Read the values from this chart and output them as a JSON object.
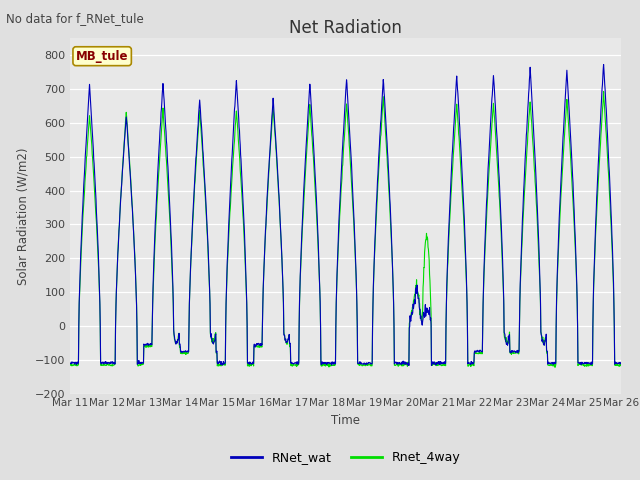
{
  "title": "Net Radiation",
  "ylabel": "Solar Radiation (W/m2)",
  "xlabel": "Time",
  "no_data_text": "No data for f_RNet_tule",
  "annotation_text": "MB_tule",
  "ylim": [
    -200,
    850
  ],
  "yticks": [
    -200,
    -100,
    0,
    100,
    200,
    300,
    400,
    500,
    600,
    700,
    800
  ],
  "xtick_labels": [
    "Mar 11",
    "Mar 12",
    "Mar 13",
    "Mar 14",
    "Mar 15",
    "Mar 16",
    "Mar 17",
    "Mar 18",
    "Mar 19",
    "Mar 20",
    "Mar 21",
    "Mar 22",
    "Mar 23",
    "Mar 24",
    "Mar 25",
    "Mar 26"
  ],
  "line1_color": "#0000bb",
  "line2_color": "#00dd00",
  "line1_label": "RNet_wat",
  "line2_label": "Rnet_4way",
  "fig_bg_color": "#e0e0e0",
  "plot_bg_color": "#e8e8e8",
  "n_days": 15,
  "peaks_blue": [
    710,
    620,
    720,
    670,
    725,
    670,
    717,
    730,
    730,
    115,
    740,
    745,
    762,
    755,
    775
  ],
  "peaks_green": [
    625,
    630,
    640,
    638,
    636,
    648,
    655,
    658,
    678,
    270,
    657,
    660,
    665,
    670,
    690
  ],
  "night_vals": [
    -110,
    -110,
    -55,
    -75,
    -110,
    -55,
    -110,
    -110,
    -110,
    -110,
    -110,
    -75,
    -75,
    -110,
    -110
  ],
  "dawn_bumps_blue": [
    0,
    0,
    1,
    1,
    0,
    1,
    0,
    0,
    0,
    1,
    0,
    1,
    1,
    0,
    0
  ],
  "dawn_bumps_green": [
    0,
    0,
    1,
    1,
    0,
    1,
    0,
    0,
    0,
    1,
    0,
    1,
    1,
    0,
    0
  ]
}
